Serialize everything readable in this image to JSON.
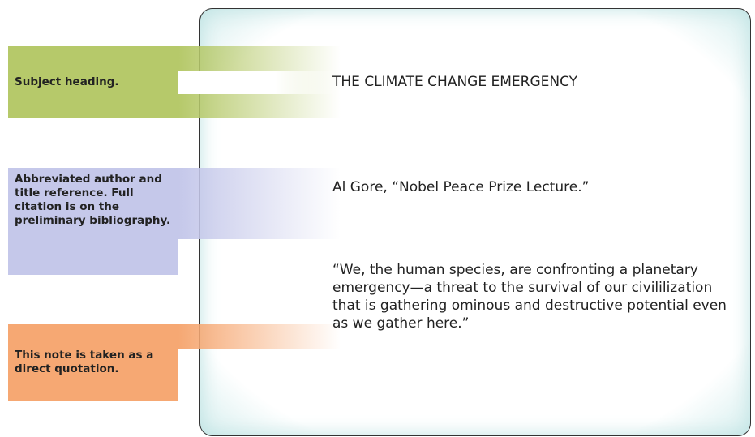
{
  "labels": [
    "Subject heading.",
    "Abbreviated author and title reference. Full citation is on the preliminary bibliography.",
    "This note is taken as a direct quotation."
  ],
  "card": {
    "heading": "THE CLIMATE CHANGE EMERGENCY",
    "reference": "Al Gore, “Nobel Peace Prize Lecture.”",
    "quotation": "“We, the human species, are confronting a planetary emergency—a threat to the survival of our civililization that is gathering ominous and destructive potential even as we gather here.”"
  }
}
